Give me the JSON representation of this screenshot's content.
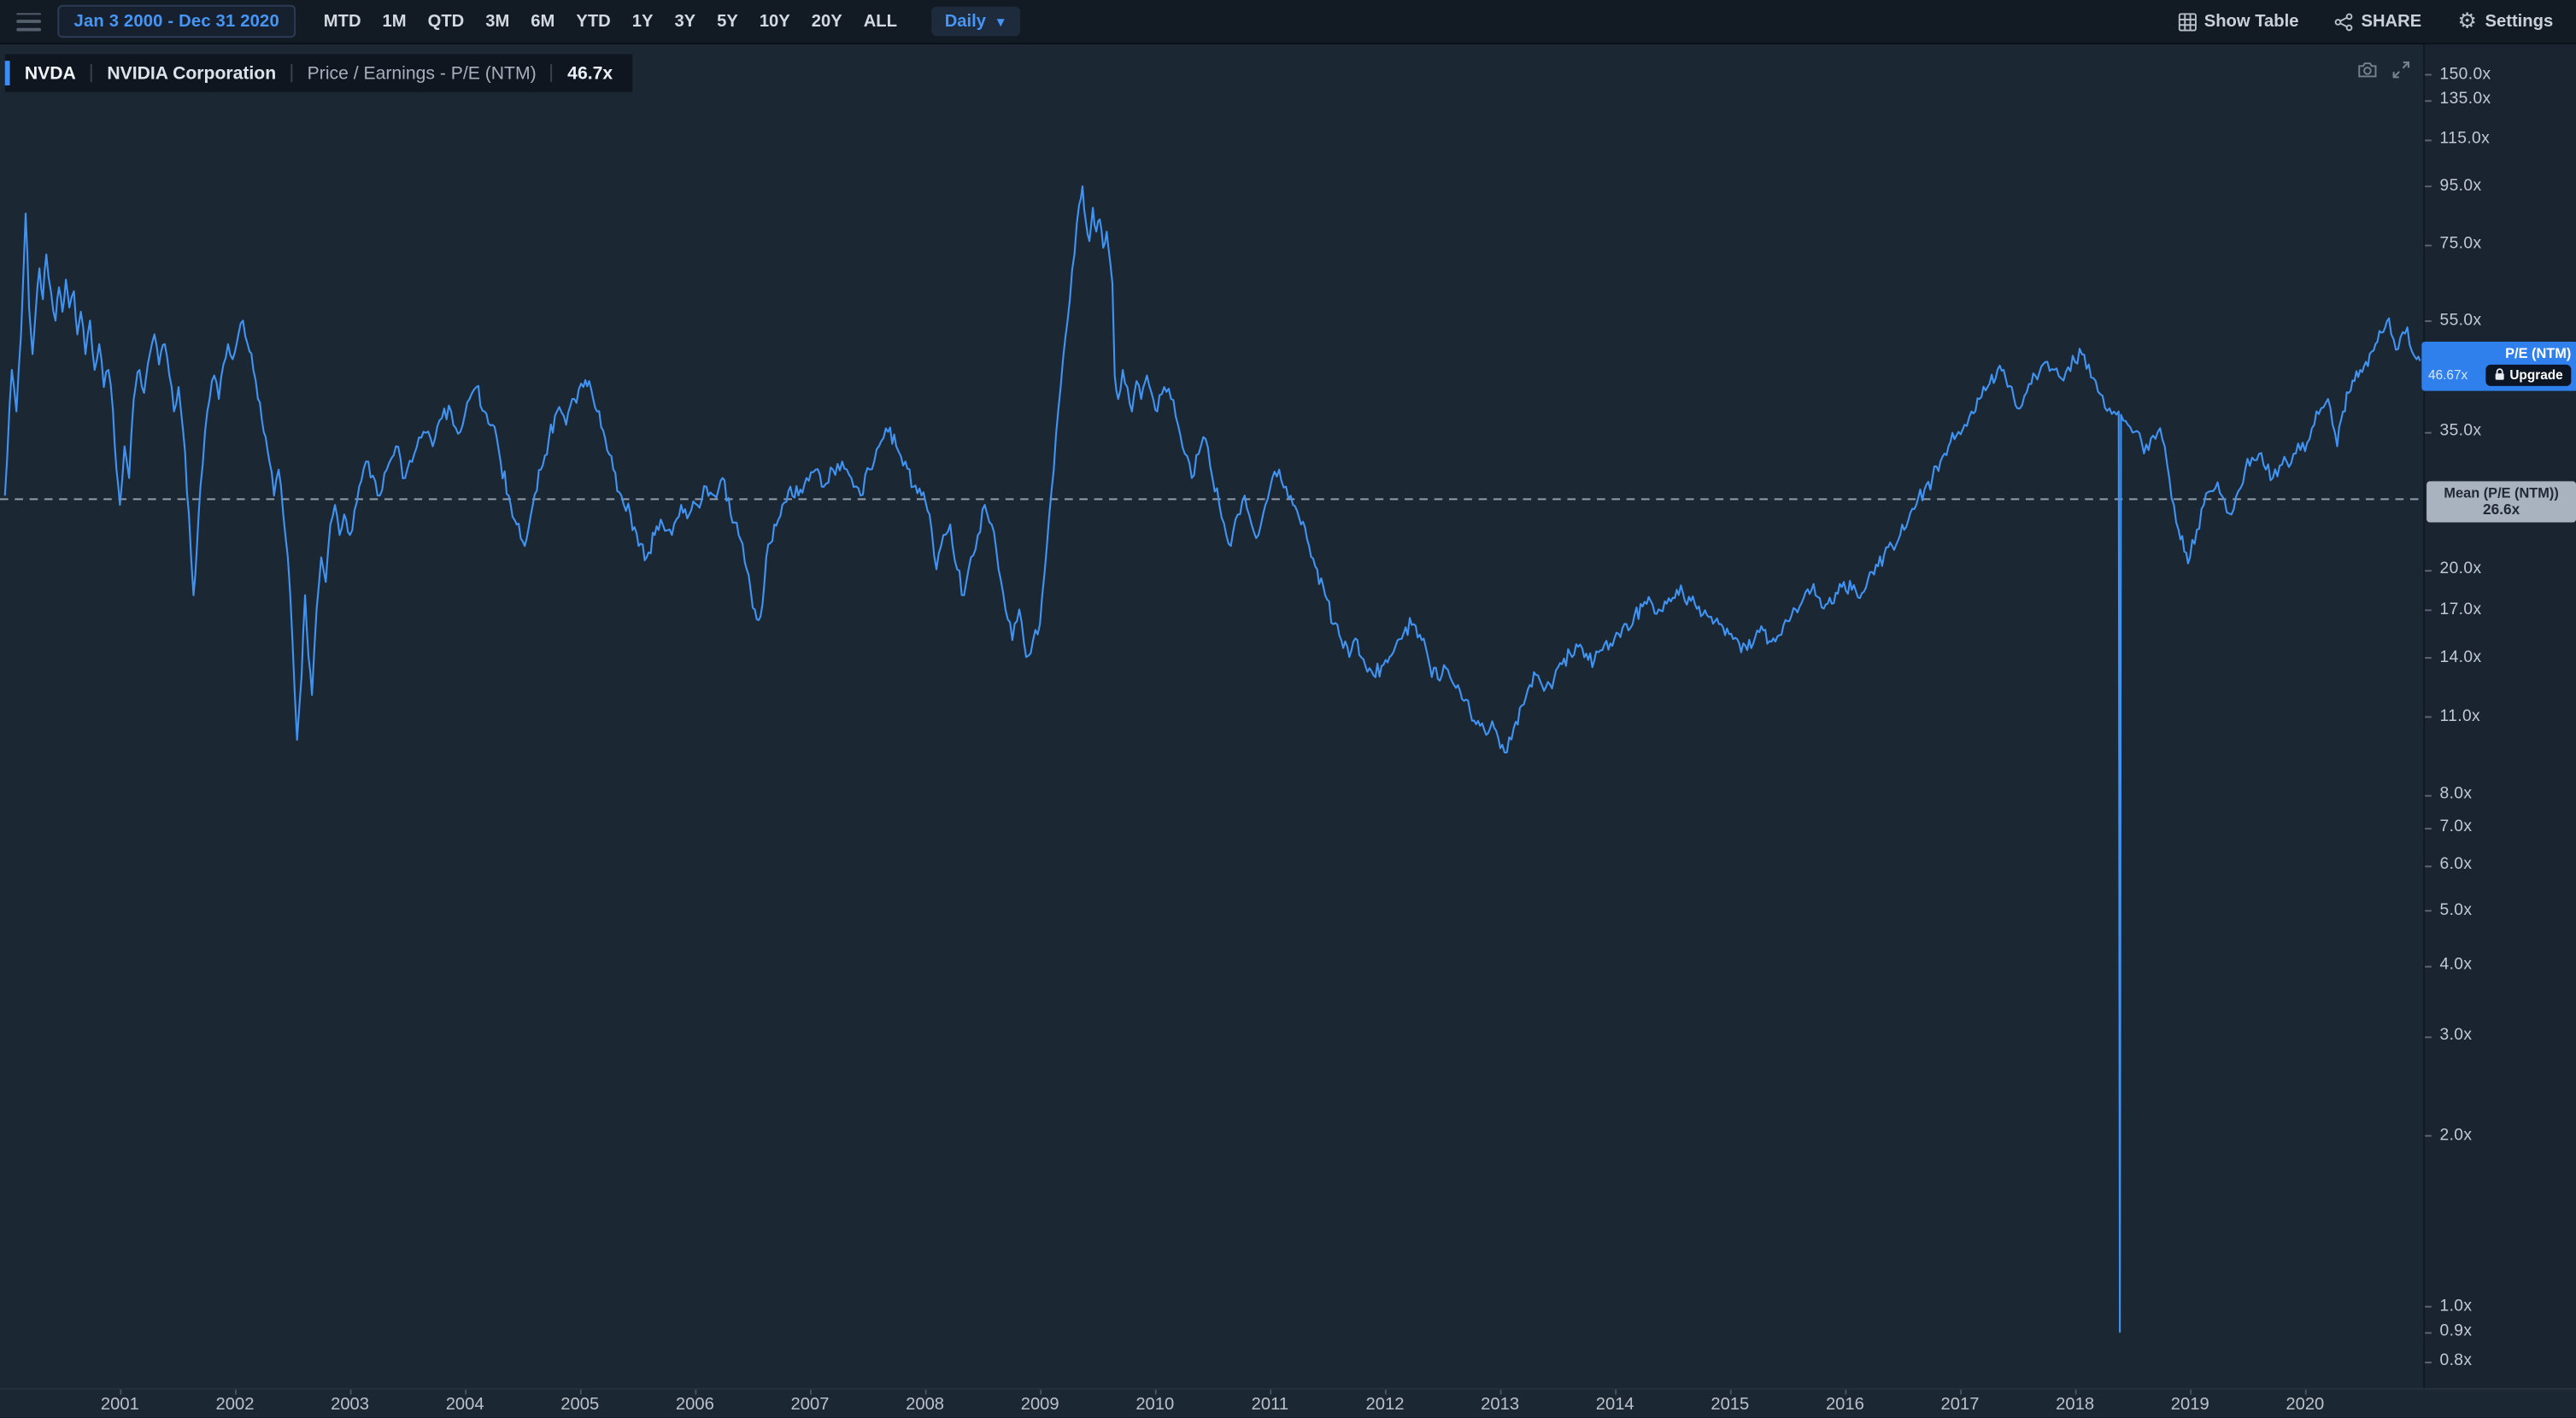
{
  "accent_color": "#3d8df5",
  "topbar": {
    "date_range": "Jan 3 2000 - Dec 31 2020",
    "range_buttons": [
      "MTD",
      "1M",
      "QTD",
      "3M",
      "6M",
      "YTD",
      "1Y",
      "3Y",
      "5Y",
      "10Y",
      "20Y",
      "ALL"
    ],
    "frequency": "Daily",
    "show_table": "Show Table",
    "share": "SHARE",
    "settings": "Settings"
  },
  "header": {
    "ticker": "NVDA",
    "company": "NVIDIA Corporation",
    "metric": "Price / Earnings - P/E (NTM)",
    "value": "46.7x"
  },
  "flag": {
    "label": "P/E (NTM)",
    "value": "46.67x",
    "upgrade": "Upgrade",
    "color": "#2f80ed"
  },
  "mean_label": {
    "title": "Mean (P/E (NTM))",
    "value": "26.6x"
  },
  "chart_data": {
    "type": "line",
    "title": "NVDA Price / Earnings - P/E (NTM)",
    "legend": "P/E (NTM)",
    "y_scale": "log",
    "line_color": "#3f93f2",
    "mean": 26.6,
    "x_range": [
      2000.0,
      2021.0
    ],
    "x_axis_years": [
      2001,
      2002,
      2003,
      2004,
      2005,
      2006,
      2007,
      2008,
      2009,
      2010,
      2011,
      2012,
      2013,
      2014,
      2015,
      2016,
      2017,
      2018,
      2019,
      2020
    ],
    "y_axis_ticks": [
      {
        "label": "150.0x",
        "v": 150
      },
      {
        "label": "135.0x",
        "v": 135
      },
      {
        "label": "115.0x",
        "v": 115
      },
      {
        "label": "95.0x",
        "v": 95
      },
      {
        "label": "75.0x",
        "v": 75
      },
      {
        "label": "55.0x",
        "v": 55
      },
      {
        "label": "35.0x",
        "v": 35
      },
      {
        "label": "20.0x",
        "v": 20
      },
      {
        "label": "17.0x",
        "v": 17
      },
      {
        "label": "14.0x",
        "v": 14
      },
      {
        "label": "11.0x",
        "v": 11
      },
      {
        "label": "8.0x",
        "v": 8
      },
      {
        "label": "7.0x",
        "v": 7
      },
      {
        "label": "6.0x",
        "v": 6
      },
      {
        "label": "5.0x",
        "v": 5
      },
      {
        "label": "4.0x",
        "v": 4
      },
      {
        "label": "3.0x",
        "v": 3
      },
      {
        "label": "2.0x",
        "v": 2
      },
      {
        "label": "1.0x",
        "v": 1
      },
      {
        "label": "0.9x",
        "v": 0.9
      },
      {
        "label": "0.8x",
        "v": 0.8
      }
    ],
    "series": [
      [
        2000.0,
        27
      ],
      [
        2000.06,
        45
      ],
      [
        2000.1,
        38
      ],
      [
        2000.14,
        52
      ],
      [
        2000.18,
        85
      ],
      [
        2000.21,
        58
      ],
      [
        2000.24,
        48
      ],
      [
        2000.27,
        58
      ],
      [
        2000.3,
        68
      ],
      [
        2000.33,
        60
      ],
      [
        2000.36,
        72
      ],
      [
        2000.4,
        62
      ],
      [
        2000.44,
        55
      ],
      [
        2000.47,
        63
      ],
      [
        2000.5,
        57
      ],
      [
        2000.53,
        65
      ],
      [
        2000.56,
        58
      ],
      [
        2000.6,
        62
      ],
      [
        2000.63,
        52
      ],
      [
        2000.66,
        57
      ],
      [
        2000.7,
        48
      ],
      [
        2000.74,
        55
      ],
      [
        2000.78,
        45
      ],
      [
        2000.82,
        50
      ],
      [
        2000.86,
        42
      ],
      [
        2000.9,
        45
      ],
      [
        2000.94,
        38
      ],
      [
        2000.97,
        30
      ],
      [
        2001.0,
        26
      ],
      [
        2001.04,
        33
      ],
      [
        2001.08,
        29
      ],
      [
        2001.12,
        40
      ],
      [
        2001.17,
        45
      ],
      [
        2001.21,
        41
      ],
      [
        2001.26,
        48
      ],
      [
        2001.3,
        52
      ],
      [
        2001.34,
        46
      ],
      [
        2001.39,
        50
      ],
      [
        2001.43,
        44
      ],
      [
        2001.47,
        38
      ],
      [
        2001.51,
        42
      ],
      [
        2001.55,
        35
      ],
      [
        2001.6,
        25
      ],
      [
        2001.64,
        18
      ],
      [
        2001.67,
        22
      ],
      [
        2001.7,
        28
      ],
      [
        2001.74,
        35
      ],
      [
        2001.78,
        40
      ],
      [
        2001.82,
        44
      ],
      [
        2001.86,
        40
      ],
      [
        2001.9,
        46
      ],
      [
        2001.94,
        50
      ],
      [
        2001.98,
        47
      ],
      [
        2002.03,
        52
      ],
      [
        2002.07,
        55
      ],
      [
        2002.11,
        50
      ],
      [
        2002.16,
        45
      ],
      [
        2002.2,
        40
      ],
      [
        2002.25,
        35
      ],
      [
        2002.3,
        31
      ],
      [
        2002.34,
        27
      ],
      [
        2002.38,
        30
      ],
      [
        2002.42,
        25
      ],
      [
        2002.46,
        21
      ],
      [
        2002.5,
        15
      ],
      [
        2002.54,
        10
      ],
      [
        2002.58,
        13
      ],
      [
        2002.61,
        18
      ],
      [
        2002.64,
        14
      ],
      [
        2002.67,
        12
      ],
      [
        2002.71,
        17
      ],
      [
        2002.75,
        21
      ],
      [
        2002.79,
        19
      ],
      [
        2002.83,
        24
      ],
      [
        2002.87,
        26
      ],
      [
        2002.91,
        23
      ],
      [
        2002.95,
        25
      ],
      [
        2003.0,
        23
      ],
      [
        2003.08,
        28
      ],
      [
        2003.16,
        31
      ],
      [
        2003.24,
        27
      ],
      [
        2003.32,
        30
      ],
      [
        2003.4,
        33
      ],
      [
        2003.48,
        29
      ],
      [
        2003.56,
        32
      ],
      [
        2003.64,
        35
      ],
      [
        2003.72,
        33
      ],
      [
        2003.8,
        37
      ],
      [
        2003.88,
        38
      ],
      [
        2003.96,
        35
      ],
      [
        2004.04,
        40
      ],
      [
        2004.1,
        42
      ],
      [
        2004.17,
        38
      ],
      [
        2004.24,
        36
      ],
      [
        2004.31,
        31
      ],
      [
        2004.38,
        27
      ],
      [
        2004.45,
        24
      ],
      [
        2004.52,
        22
      ],
      [
        2004.59,
        26
      ],
      [
        2004.66,
        30
      ],
      [
        2004.73,
        34
      ],
      [
        2004.8,
        38
      ],
      [
        2004.88,
        36
      ],
      [
        2004.95,
        40
      ],
      [
        2005.03,
        42
      ],
      [
        2005.08,
        43
      ],
      [
        2005.15,
        38
      ],
      [
        2005.22,
        34
      ],
      [
        2005.29,
        30
      ],
      [
        2005.36,
        27
      ],
      [
        2005.44,
        25
      ],
      [
        2005.51,
        22
      ],
      [
        2005.58,
        21
      ],
      [
        2005.65,
        23
      ],
      [
        2005.72,
        24
      ],
      [
        2005.8,
        23
      ],
      [
        2005.88,
        26
      ],
      [
        2005.95,
        25
      ],
      [
        2006.02,
        26
      ],
      [
        2006.1,
        28
      ],
      [
        2006.17,
        27
      ],
      [
        2006.24,
        29
      ],
      [
        2006.31,
        25
      ],
      [
        2006.38,
        23
      ],
      [
        2006.45,
        20
      ],
      [
        2006.52,
        17
      ],
      [
        2006.57,
        16.5
      ],
      [
        2006.62,
        21
      ],
      [
        2006.69,
        24
      ],
      [
        2006.76,
        26
      ],
      [
        2006.83,
        28
      ],
      [
        2006.9,
        27
      ],
      [
        2006.97,
        29
      ],
      [
        2007.05,
        30
      ],
      [
        2007.12,
        28
      ],
      [
        2007.2,
        30
      ],
      [
        2007.28,
        31
      ],
      [
        2007.36,
        29
      ],
      [
        2007.44,
        27
      ],
      [
        2007.52,
        30
      ],
      [
        2007.6,
        33
      ],
      [
        2007.68,
        35
      ],
      [
        2007.75,
        33
      ],
      [
        2007.83,
        31
      ],
      [
        2007.9,
        28
      ],
      [
        2007.97,
        27
      ],
      [
        2008.04,
        25
      ],
      [
        2008.1,
        20
      ],
      [
        2008.16,
        23
      ],
      [
        2008.22,
        24
      ],
      [
        2008.28,
        20
      ],
      [
        2008.34,
        18
      ],
      [
        2008.4,
        21
      ],
      [
        2008.46,
        23
      ],
      [
        2008.52,
        26
      ],
      [
        2008.58,
        24
      ],
      [
        2008.64,
        20
      ],
      [
        2008.7,
        17
      ],
      [
        2008.76,
        15
      ],
      [
        2008.82,
        17
      ],
      [
        2008.88,
        14
      ],
      [
        2008.94,
        15
      ],
      [
        2009.0,
        16
      ],
      [
        2009.06,
        22
      ],
      [
        2009.12,
        30
      ],
      [
        2009.18,
        42
      ],
      [
        2009.24,
        55
      ],
      [
        2009.3,
        72
      ],
      [
        2009.34,
        88
      ],
      [
        2009.37,
        95
      ],
      [
        2009.4,
        82
      ],
      [
        2009.43,
        76
      ],
      [
        2009.46,
        87
      ],
      [
        2009.49,
        79
      ],
      [
        2009.52,
        83
      ],
      [
        2009.55,
        74
      ],
      [
        2009.58,
        79
      ],
      [
        2009.61,
        70
      ],
      [
        2009.63,
        64
      ],
      [
        2009.65,
        44
      ],
      [
        2009.68,
        40
      ],
      [
        2009.72,
        45
      ],
      [
        2009.76,
        42
      ],
      [
        2009.8,
        38
      ],
      [
        2009.84,
        43
      ],
      [
        2009.88,
        40
      ],
      [
        2009.93,
        44
      ],
      [
        2009.97,
        41
      ],
      [
        2010.02,
        38
      ],
      [
        2010.08,
        42
      ],
      [
        2010.14,
        40
      ],
      [
        2010.2,
        36
      ],
      [
        2010.26,
        32
      ],
      [
        2010.32,
        29
      ],
      [
        2010.38,
        32
      ],
      [
        2010.44,
        34
      ],
      [
        2010.5,
        29
      ],
      [
        2010.56,
        26
      ],
      [
        2010.62,
        23
      ],
      [
        2010.66,
        22
      ],
      [
        2010.72,
        25
      ],
      [
        2010.78,
        27
      ],
      [
        2010.84,
        24
      ],
      [
        2010.9,
        23
      ],
      [
        2010.96,
        26
      ],
      [
        2011.02,
        29
      ],
      [
        2011.08,
        30
      ],
      [
        2011.14,
        28
      ],
      [
        2011.2,
        26
      ],
      [
        2011.27,
        24
      ],
      [
        2011.34,
        22
      ],
      [
        2011.41,
        20
      ],
      [
        2011.48,
        18
      ],
      [
        2011.55,
        16
      ],
      [
        2011.62,
        15
      ],
      [
        2011.69,
        14
      ],
      [
        2011.76,
        15
      ],
      [
        2011.83,
        13.5
      ],
      [
        2011.9,
        13
      ],
      [
        2011.97,
        13.5
      ],
      [
        2012.04,
        14
      ],
      [
        2012.11,
        15
      ],
      [
        2012.18,
        15.8
      ],
      [
        2012.25,
        16
      ],
      [
        2012.32,
        15
      ],
      [
        2012.39,
        13.5
      ],
      [
        2012.46,
        12.8
      ],
      [
        2012.53,
        13.4
      ],
      [
        2012.6,
        12.5
      ],
      [
        2012.67,
        11.8
      ],
      [
        2012.74,
        11.2
      ],
      [
        2012.81,
        10.8
      ],
      [
        2012.88,
        10.2
      ],
      [
        2012.95,
        10.5
      ],
      [
        2013.02,
        9.8
      ],
      [
        2013.06,
        9.5
      ],
      [
        2013.12,
        10.5
      ],
      [
        2013.19,
        11.5
      ],
      [
        2013.26,
        12.5
      ],
      [
        2013.33,
        13
      ],
      [
        2013.4,
        12.4
      ],
      [
        2013.47,
        12.8
      ],
      [
        2013.54,
        13.6
      ],
      [
        2013.61,
        14.2
      ],
      [
        2013.68,
        14.6
      ],
      [
        2013.75,
        14.2
      ],
      [
        2013.82,
        13.8
      ],
      [
        2013.89,
        14.4
      ],
      [
        2013.96,
        14.8
      ],
      [
        2014.03,
        15.4
      ],
      [
        2014.1,
        16
      ],
      [
        2014.17,
        16.6
      ],
      [
        2014.24,
        17.2
      ],
      [
        2014.31,
        17.6
      ],
      [
        2014.38,
        17
      ],
      [
        2014.45,
        17.4
      ],
      [
        2014.52,
        17.8
      ],
      [
        2014.59,
        18.2
      ],
      [
        2014.66,
        17.6
      ],
      [
        2014.73,
        17.2
      ],
      [
        2014.8,
        16.6
      ],
      [
        2014.87,
        16.2
      ],
      [
        2014.94,
        15.8
      ],
      [
        2015.01,
        15.4
      ],
      [
        2015.08,
        14.8
      ],
      [
        2015.15,
        14.4
      ],
      [
        2015.22,
        15.2
      ],
      [
        2015.29,
        15.6
      ],
      [
        2015.36,
        14.9
      ],
      [
        2015.43,
        15.3
      ],
      [
        2015.5,
        16.2
      ],
      [
        2015.57,
        17
      ],
      [
        2015.64,
        17.8
      ],
      [
        2015.71,
        18.4
      ],
      [
        2015.78,
        17.8
      ],
      [
        2015.85,
        17.4
      ],
      [
        2015.92,
        18.2
      ],
      [
        2015.99,
        19
      ],
      [
        2016.06,
        18.4
      ],
      [
        2016.13,
        17.8
      ],
      [
        2016.2,
        19.2
      ],
      [
        2016.27,
        20.4
      ],
      [
        2016.34,
        21.2
      ],
      [
        2016.41,
        22
      ],
      [
        2016.48,
        23
      ],
      [
        2016.55,
        24.4
      ],
      [
        2016.62,
        26
      ],
      [
        2016.69,
        27.6
      ],
      [
        2016.76,
        29
      ],
      [
        2016.83,
        31
      ],
      [
        2016.9,
        33
      ],
      [
        2016.97,
        34.5
      ],
      [
        2017.04,
        36
      ],
      [
        2017.1,
        38
      ],
      [
        2017.17,
        40
      ],
      [
        2017.24,
        42
      ],
      [
        2017.31,
        43.5
      ],
      [
        2017.38,
        45
      ],
      [
        2017.45,
        42
      ],
      [
        2017.5,
        38.5
      ],
      [
        2017.56,
        40.5
      ],
      [
        2017.62,
        42.5
      ],
      [
        2017.69,
        44.5
      ],
      [
        2017.76,
        46.5
      ],
      [
        2017.82,
        45
      ],
      [
        2017.88,
        43.5
      ],
      [
        2017.94,
        45.5
      ],
      [
        2018.0,
        46.5
      ],
      [
        2018.06,
        48
      ],
      [
        2018.12,
        46
      ],
      [
        2018.18,
        43
      ],
      [
        2018.24,
        40.5
      ],
      [
        2018.3,
        38.5
      ],
      [
        2018.38,
        38
      ],
      [
        2018.39,
        0.9
      ],
      [
        2018.4,
        37.5
      ],
      [
        2018.46,
        36
      ],
      [
        2018.52,
        35
      ],
      [
        2018.58,
        33.5
      ],
      [
        2018.64,
        32.5
      ],
      [
        2018.7,
        34
      ],
      [
        2018.74,
        35.5
      ],
      [
        2018.78,
        33
      ],
      [
        2018.82,
        29
      ],
      [
        2018.86,
        26
      ],
      [
        2018.9,
        23.5
      ],
      [
        2018.95,
        21.5
      ],
      [
        2019.0,
        21
      ],
      [
        2019.06,
        23.5
      ],
      [
        2019.12,
        26
      ],
      [
        2019.18,
        27.5
      ],
      [
        2019.24,
        28.5
      ],
      [
        2019.3,
        26.5
      ],
      [
        2019.36,
        25
      ],
      [
        2019.42,
        27.5
      ],
      [
        2019.48,
        30
      ],
      [
        2019.54,
        31.5
      ],
      [
        2019.6,
        32
      ],
      [
        2019.66,
        30
      ],
      [
        2019.72,
        29
      ],
      [
        2019.78,
        30.5
      ],
      [
        2019.84,
        31
      ],
      [
        2019.9,
        32
      ],
      [
        2019.96,
        32.5
      ],
      [
        2020.02,
        33.5
      ],
      [
        2020.08,
        36
      ],
      [
        2020.14,
        38.5
      ],
      [
        2020.2,
        40
      ],
      [
        2020.24,
        36
      ],
      [
        2020.28,
        33
      ],
      [
        2020.33,
        38
      ],
      [
        2020.38,
        41
      ],
      [
        2020.43,
        43
      ],
      [
        2020.48,
        45
      ],
      [
        2020.53,
        46.5
      ],
      [
        2020.58,
        48.5
      ],
      [
        2020.63,
        50.5
      ],
      [
        2020.68,
        52.5
      ],
      [
        2020.73,
        55.5
      ],
      [
        2020.77,
        51
      ],
      [
        2020.81,
        49
      ],
      [
        2020.85,
        52.5
      ],
      [
        2020.89,
        53.5
      ],
      [
        2020.93,
        48.5
      ],
      [
        2020.97,
        47
      ],
      [
        2021.0,
        46.7
      ]
    ]
  }
}
